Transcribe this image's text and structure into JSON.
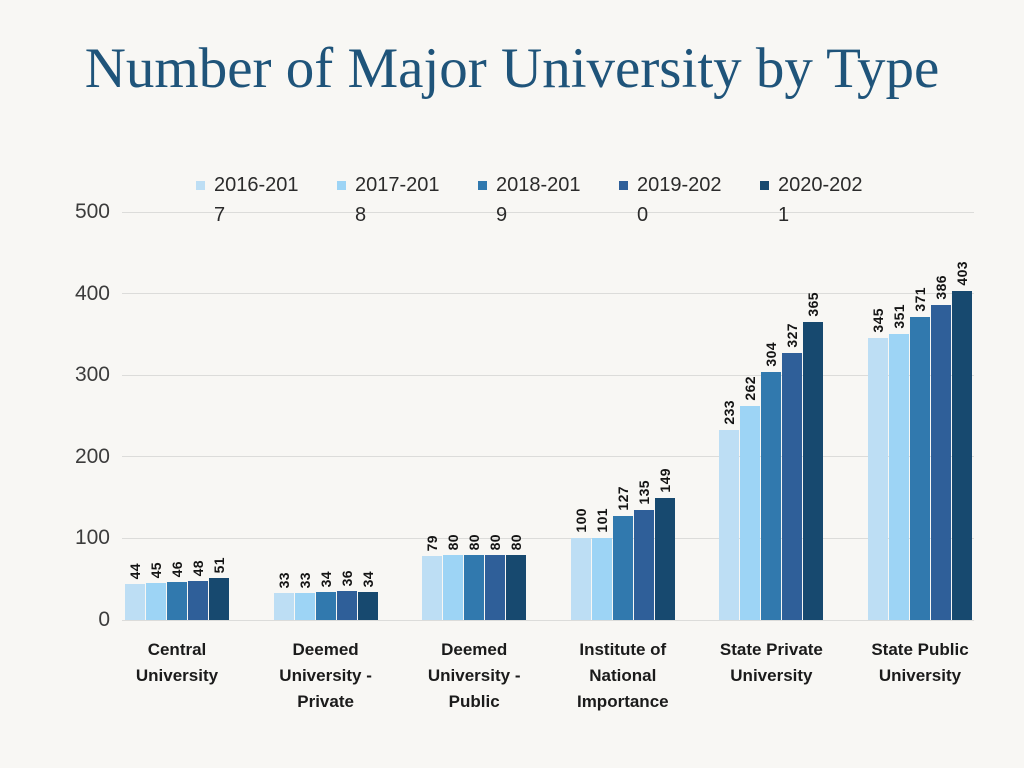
{
  "page": {
    "background_color": "#F8F7F4",
    "title_color": "#1F547A",
    "gridline_color": "#DCDCDA"
  },
  "chart_data": {
    "type": "bar",
    "title": "Number of Major University by Type",
    "categories": [
      "Central University",
      "Deemed University -Private",
      "Deemed University -Public",
      "Institute of National Importance",
      "State Private University",
      "State Public University"
    ],
    "series": [
      {
        "name": "2016-2017",
        "color": "#BDDEF4",
        "values": [
          44,
          33,
          79,
          100,
          233,
          345
        ]
      },
      {
        "name": "2017-2018",
        "color": "#9DD4F5",
        "values": [
          45,
          33,
          80,
          101,
          262,
          351
        ]
      },
      {
        "name": "2018-2019",
        "color": "#3179AE",
        "values": [
          46,
          34,
          80,
          127,
          304,
          371
        ]
      },
      {
        "name": "2019-2020",
        "color": "#2F5F99",
        "values": [
          48,
          36,
          80,
          135,
          327,
          386
        ]
      },
      {
        "name": "2020-2021",
        "color": "#17496F",
        "values": [
          51,
          34,
          80,
          149,
          365,
          403
        ]
      }
    ],
    "y_ticks": [
      0,
      100,
      200,
      300,
      400,
      500
    ],
    "ylim": [
      0,
      500
    ],
    "grid": true,
    "legend_position": "top",
    "data_labels": "rotated-90-above-bars"
  }
}
